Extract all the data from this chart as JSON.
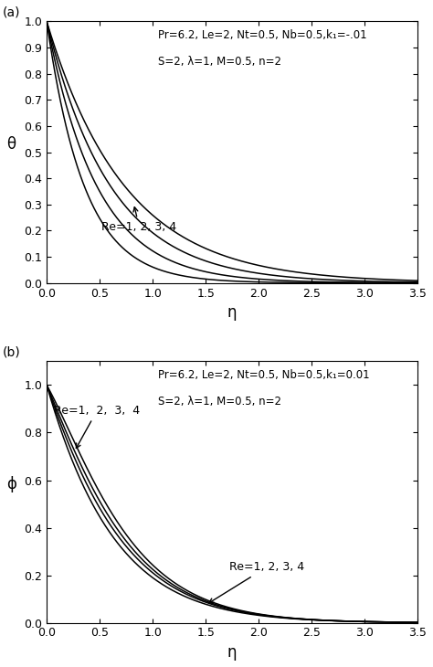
{
  "panel_a": {
    "ylabel": "θ",
    "xlabel": "η",
    "annotation_line1": "Pr=6.2, Le=2, Nt=0.5, Nb=0.5,k₁=-.01",
    "annotation_line2": "S=2, λ=1, M=0.5, n=2",
    "arrow_label": "Re=1, 2, 3, 4",
    "xlim": [
      0,
      3.5
    ],
    "ylim": [
      0,
      1.0
    ],
    "xticks": [
      0,
      0.5,
      1.0,
      1.5,
      2.0,
      2.5,
      3.0,
      3.5
    ],
    "yticks": [
      0.0,
      0.1,
      0.2,
      0.3,
      0.4,
      0.5,
      0.6,
      0.7,
      0.8,
      0.9,
      1.0
    ],
    "decay_rates": [
      2.8,
      2.1,
      1.65,
      1.35
    ]
  },
  "panel_b": {
    "ylabel": "ϕ",
    "xlabel": "η",
    "annotation_line1": "Pr=6.2, Le=2, Nt=0.5, Nb=0.5,k₁=0.01",
    "annotation_line2": "S=2, λ=1, M=0.5, n=2",
    "arrow_label_top": "Re=1,  2,  3,  4",
    "arrow_label_bot": "Re=1, 2, 3, 4",
    "xlim": [
      0,
      3.5
    ],
    "ylim": [
      0,
      1.1
    ],
    "xticks": [
      0,
      0.5,
      1.0,
      1.5,
      2.0,
      2.5,
      3.0,
      3.5
    ],
    "yticks": [
      0.0,
      0.2,
      0.4,
      0.6,
      0.8,
      1.0
    ],
    "curve_params": [
      [
        0.55,
        2.1
      ],
      [
        0.9,
        2.2
      ],
      [
        1.2,
        2.28
      ],
      [
        1.55,
        2.35
      ]
    ]
  },
  "line_color": "#000000",
  "line_width": 1.1,
  "font_size": 9,
  "label_fontsize": 12
}
